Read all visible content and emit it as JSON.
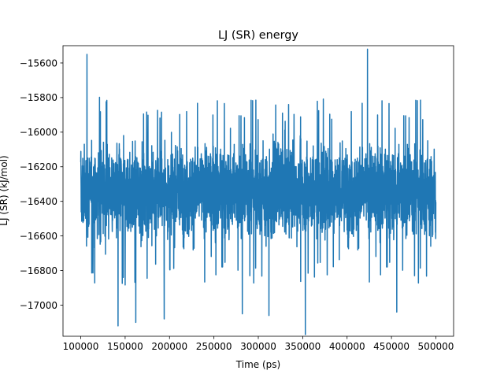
{
  "chart_data": {
    "type": "line",
    "title": "LJ (SR) energy",
    "xlabel": "Time (ps)",
    "ylabel": "LJ (SR) (kJ/mol)",
    "xlim": [
      80000,
      520000
    ],
    "ylim": [
      -17180,
      -15500
    ],
    "xticks": [
      100000,
      150000,
      200000,
      250000,
      300000,
      350000,
      400000,
      450000,
      500000
    ],
    "yticks": [
      -17000,
      -16800,
      -16600,
      -16400,
      -16200,
      -16000,
      -15800,
      -15600
    ],
    "grid": false,
    "series": [
      {
        "color": "#1f77b4",
        "x_start": 100000,
        "x_end": 500000,
        "mean": -16340,
        "typical_min": -16700,
        "typical_max": -15920,
        "observed_min": -17170,
        "observed_max": -15520,
        "extremes": [
          {
            "x": 107000,
            "y": -15550
          },
          {
            "x": 423000,
            "y": -15520
          },
          {
            "x": 353000,
            "y": -17170
          },
          {
            "x": 142000,
            "y": -17120
          },
          {
            "x": 162000,
            "y": -17100
          },
          {
            "x": 194000,
            "y": -17080
          },
          {
            "x": 282000,
            "y": -17050
          },
          {
            "x": 312000,
            "y": -17060
          },
          {
            "x": 456000,
            "y": -17040
          }
        ]
      }
    ]
  }
}
